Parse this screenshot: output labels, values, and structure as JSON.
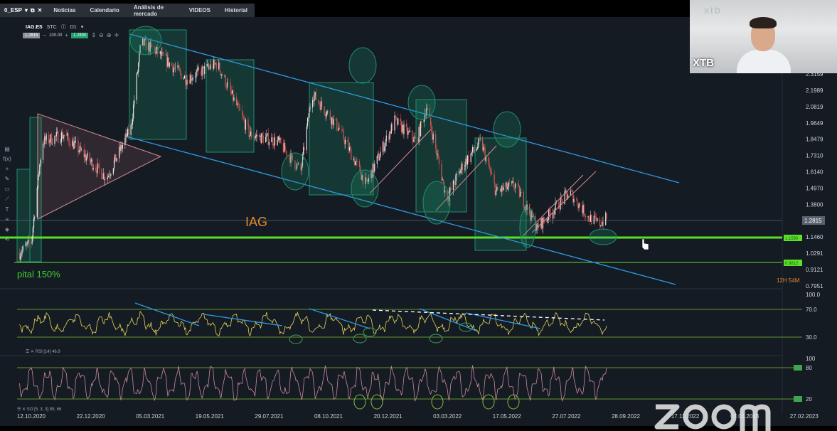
{
  "tabs": {
    "workspace": "0_ESP",
    "items": [
      "Noticias",
      "Calendario",
      "Análisis de mercado",
      "VIDEOS",
      "Historial"
    ]
  },
  "instrument": {
    "symbol": "IAG.ES",
    "type": "STC",
    "interval": "D1",
    "sell_price": "1.2815",
    "volume": "100.00",
    "buy_price": "1.2830"
  },
  "webcam": {
    "name": "XTB",
    "logo": "xtb"
  },
  "price_axis": {
    "ticks": [
      "2.3159",
      "2.1989",
      "2.0819",
      "1.9649",
      "1.8479",
      "1.7310",
      "1.6140",
      "1.4970",
      "1.3800",
      "1.1460",
      "1.0291",
      "0.9121",
      "0.7951"
    ],
    "current_price": "1.2815",
    "support_level": "1.1590",
    "lower_level": "0.9812",
    "countdown": "12H 54M"
  },
  "annotations": {
    "ticker_label": "IAG",
    "capital_label": "pital 150%"
  },
  "rsi_panel": {
    "top": "100.0",
    "upper": "70.0",
    "lower": "30.0",
    "label": "RSI [14] 46.9"
  },
  "so_panel": {
    "top": "100",
    "upper": "80",
    "lower": "20",
    "label": "SO [5, 3, 3] 85, 66"
  },
  "date_axis": [
    "12.10.2020",
    "22.12.2020",
    "05.03.2021",
    "19.05.2021",
    "29.07.2021",
    "08.10.2021",
    "20.12.2021",
    "03.03.2022",
    "17.05.2022",
    "27.07.2022",
    "28.09.2022",
    "17.11.2022",
    "07.01.2023",
    "27.02.2023"
  ],
  "colors": {
    "bull": "#e6e6e6",
    "bear": "#d9534f",
    "channel": "#2e9be6",
    "support": "#5be02a",
    "zone": "#1d8f6d",
    "rsi": "#e3d35a",
    "label_orange": "#e08a2c"
  },
  "price_path": [
    [
      "2020-09-28",
      1.03
    ],
    [
      "2020-10-12",
      1.11
    ],
    [
      "2020-10-25",
      1.83
    ],
    [
      "2020-11-20",
      1.88
    ],
    [
      "2021-01-10",
      1.57
    ],
    [
      "2021-02-08",
      1.93
    ],
    [
      "2021-02-20",
      2.54
    ],
    [
      "2021-03-08",
      2.49
    ],
    [
      "2021-04-15",
      2.28
    ],
    [
      "2021-05-22",
      2.39
    ],
    [
      "2021-06-30",
      1.88
    ],
    [
      "2021-08-03",
      1.83
    ],
    [
      "2021-08-30",
      1.62
    ],
    [
      "2021-09-12",
      2.18
    ],
    [
      "2021-10-14",
      1.93
    ],
    [
      "2021-11-16",
      1.52
    ],
    [
      "2021-12-20",
      1.98
    ],
    [
      "2022-01-15",
      1.83
    ],
    [
      "2022-01-27",
      2.08
    ],
    [
      "2022-02-20",
      1.42
    ],
    [
      "2022-03-12",
      1.67
    ],
    [
      "2022-04-02",
      1.83
    ],
    [
      "2022-04-20",
      1.47
    ],
    [
      "2022-05-13",
      1.52
    ],
    [
      "2022-06-08",
      1.21
    ],
    [
      "2022-07-17",
      1.47
    ],
    [
      "2022-08-08",
      1.29
    ],
    [
      "2022-08-21",
      1.24
    ],
    [
      "2022-08-30",
      1.28
    ]
  ],
  "footer": {
    "watermark": "zoom"
  }
}
